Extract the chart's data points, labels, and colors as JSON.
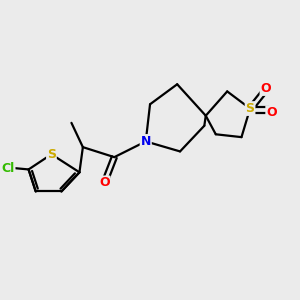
{
  "bg_color": "#ebebeb",
  "atom_colors": {
    "S": "#ccaa00",
    "O": "#ff0000",
    "N": "#0000ee",
    "Cl": "#33bb00",
    "C": "#000000"
  },
  "line_color": "#000000",
  "line_width": 1.6,
  "figsize": [
    3.0,
    3.0
  ],
  "dpi": 100,
  "xlim": [
    0,
    10
  ],
  "ylim": [
    0,
    10
  ]
}
